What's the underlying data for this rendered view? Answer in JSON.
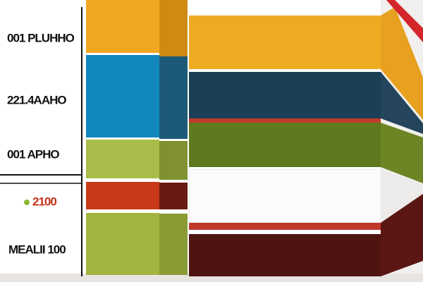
{
  "labels": [
    "001 PLUHHO",
    "221.4AAHO",
    "001 APHO",
    "2100",
    "MEALII 100"
  ]
}
